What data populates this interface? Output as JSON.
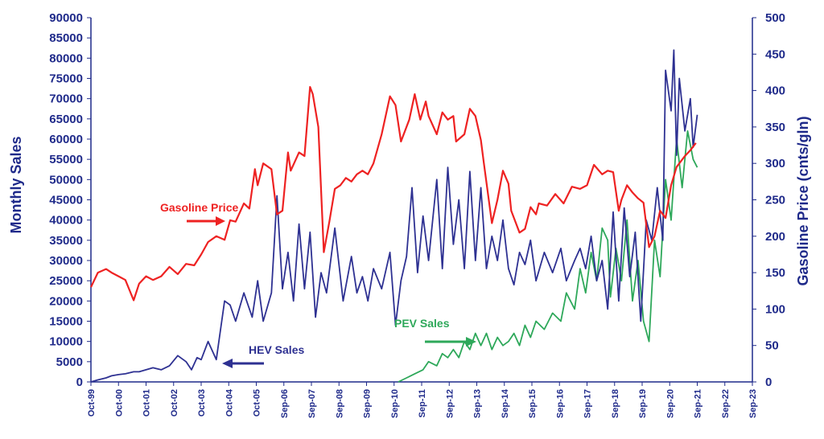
{
  "chart_data": {
    "type": "line",
    "title": "",
    "xlabel": "",
    "ylabel_left": "Monthly Sales",
    "ylabel_right": "Gasoline Price (cnts/gln)",
    "ylim_left": [
      0,
      90000
    ],
    "ylim_right": [
      0,
      500
    ],
    "yticks_left": [
      "0",
      "5000",
      "10000",
      "15000",
      "20000",
      "25000",
      "30000",
      "35000",
      "40000",
      "45000",
      "50000",
      "55000",
      "60000",
      "65000",
      "70000",
      "75000",
      "80000",
      "85000",
      "90000"
    ],
    "yticks_right": [
      "0",
      "50",
      "100",
      "150",
      "200",
      "250",
      "300",
      "350",
      "400",
      "450",
      "500"
    ],
    "xticks": [
      "Oct-99",
      "Oct-00",
      "Oct-01",
      "Oct-02",
      "Oct-03",
      "Oct-04",
      "Oct-05",
      "Sep-06",
      "Sep-07",
      "Sep-08",
      "Sep-09",
      "Sep-10",
      "Sep-11",
      "Sep-12",
      "Sep-13",
      "Sep-14",
      "Sep-15",
      "Sep-16",
      "Sep-17",
      "Sep-18",
      "Sep-19",
      "Sep-20",
      "Sep-21",
      "Sep-22",
      "Sep-23"
    ],
    "grid": false,
    "colors": {
      "gasoline": "#ee2222",
      "hev": "#2e3192",
      "pev": "#2ea85a",
      "axis": "#1f2a8a"
    },
    "annotations": [
      {
        "label": "Gasoline Price",
        "series": "gasoline"
      },
      {
        "label": "HEV Sales",
        "series": "hev"
      },
      {
        "label": "PEV Sales",
        "series": "pev"
      }
    ],
    "series": [
      {
        "name": "Gasoline Price",
        "axis": "right",
        "x": [
          1999.75,
          2000.0,
          2000.3,
          2000.5,
          2000.75,
          2001.0,
          2001.3,
          2001.5,
          2001.75,
          2002.0,
          2002.3,
          2002.6,
          2002.9,
          2003.2,
          2003.5,
          2003.75,
          2004.0,
          2004.3,
          2004.6,
          2004.8,
          2005.0,
          2005.3,
          2005.5,
          2005.7,
          2005.8,
          2006.0,
          2006.3,
          2006.5,
          2006.7,
          2006.9,
          2007.0,
          2007.3,
          2007.5,
          2007.7,
          2007.8,
          2008.0,
          2008.2,
          2008.4,
          2008.6,
          2008.8,
          2009.0,
          2009.2,
          2009.4,
          2009.6,
          2009.8,
          2010.0,
          2010.3,
          2010.6,
          2010.8,
          2011.0,
          2011.3,
          2011.5,
          2011.7,
          2011.9,
          2012.0,
          2012.3,
          2012.5,
          2012.7,
          2012.9,
          2013.0,
          2013.3,
          2013.5,
          2013.7,
          2013.9,
          2014.0,
          2014.3,
          2014.5,
          2014.7,
          2014.9,
          2015.0,
          2015.3,
          2015.5,
          2015.7,
          2015.9,
          2016.0,
          2016.3,
          2016.6,
          2016.9,
          2017.2,
          2017.5,
          2017.75,
          2018.0,
          2018.3,
          2018.5,
          2018.7,
          2018.9,
          2019.0,
          2019.2,
          2019.4,
          2019.6,
          2019.8,
          2020.0,
          2020.2,
          2020.4,
          2020.6,
          2020.8,
          2021.0,
          2021.3,
          2021.5,
          2021.7
        ],
        "values": [
          130,
          150,
          155,
          150,
          145,
          140,
          112,
          135,
          145,
          140,
          145,
          158,
          148,
          162,
          160,
          175,
          192,
          200,
          195,
          222,
          220,
          245,
          238,
          292,
          270,
          300,
          292,
          230,
          235,
          315,
          290,
          315,
          310,
          405,
          395,
          350,
          178,
          220,
          265,
          270,
          280,
          275,
          285,
          290,
          285,
          300,
          340,
          392,
          380,
          330,
          360,
          395,
          360,
          385,
          365,
          340,
          370,
          360,
          365,
          330,
          340,
          375,
          365,
          332,
          302,
          218,
          250,
          290,
          272,
          235,
          205,
          210,
          240,
          230,
          245,
          242,
          258,
          245,
          268,
          265,
          270,
          298,
          285,
          290,
          288,
          235,
          250,
          270,
          260,
          252,
          246,
          185,
          200,
          235,
          225,
          270,
          295,
          310,
          318,
          328
        ]
      },
      {
        "name": "HEV Sales",
        "axis": "left",
        "x": [
          1999.75,
          2000.0,
          2000.3,
          2000.5,
          2000.75,
          2001.0,
          2001.3,
          2001.5,
          2001.75,
          2002.0,
          2002.3,
          2002.6,
          2002.9,
          2003.2,
          2003.4,
          2003.6,
          2003.75,
          2004.0,
          2004.3,
          2004.6,
          2004.8,
          2005.0,
          2005.3,
          2005.6,
          2005.8,
          2006.0,
          2006.3,
          2006.5,
          2006.7,
          2006.9,
          2007.1,
          2007.3,
          2007.5,
          2007.7,
          2007.9,
          2008.1,
          2008.3,
          2008.6,
          2008.9,
          2009.2,
          2009.4,
          2009.6,
          2009.8,
          2010.0,
          2010.3,
          2010.6,
          2010.8,
          2011.0,
          2011.2,
          2011.4,
          2011.6,
          2011.8,
          2012.0,
          2012.3,
          2012.5,
          2012.7,
          2012.9,
          2013.1,
          2013.3,
          2013.5,
          2013.7,
          2013.9,
          2014.1,
          2014.3,
          2014.5,
          2014.7,
          2014.9,
          2015.1,
          2015.3,
          2015.5,
          2015.7,
          2015.9,
          2016.2,
          2016.5,
          2016.8,
          2017.0,
          2017.3,
          2017.5,
          2017.7,
          2017.9,
          2018.1,
          2018.3,
          2018.5,
          2018.7,
          2018.9,
          2019.1,
          2019.3,
          2019.5,
          2019.7,
          2019.9,
          2020.1,
          2020.3,
          2020.5,
          2020.6,
          2020.8,
          2020.9,
          2021.0,
          2021.1,
          2021.3,
          2021.5,
          2021.6,
          2021.75
        ],
        "values": [
          0,
          500,
          1000,
          1500,
          1800,
          2000,
          2500,
          2500,
          3000,
          3500,
          3000,
          4000,
          6500,
          5000,
          3000,
          6000,
          5500,
          10000,
          5500,
          20000,
          19000,
          15000,
          22000,
          16000,
          25000,
          15000,
          22000,
          46000,
          23000,
          32000,
          20000,
          39000,
          23000,
          37000,
          16000,
          27000,
          22000,
          38000,
          20000,
          31000,
          22000,
          26000,
          20000,
          28000,
          23000,
          32000,
          14000,
          25000,
          31000,
          48000,
          27000,
          41000,
          30000,
          50000,
          28000,
          53000,
          34000,
          45000,
          28000,
          52000,
          30000,
          48000,
          28000,
          36000,
          30000,
          40000,
          28000,
          24000,
          32000,
          29000,
          35000,
          25000,
          32000,
          27000,
          33000,
          25000,
          30000,
          33000,
          28000,
          36000,
          25000,
          30000,
          18000,
          42000,
          20000,
          43000,
          26000,
          37000,
          15000,
          40000,
          35000,
          48000,
          35000,
          77000,
          67000,
          82000,
          56000,
          75000,
          62000,
          70000,
          58000,
          66000
        ]
      },
      {
        "name": "PEV Sales",
        "axis": "left",
        "x": [
          2010.9,
          2011.2,
          2011.5,
          2011.8,
          2012.0,
          2012.3,
          2012.5,
          2012.7,
          2012.9,
          2013.1,
          2013.3,
          2013.5,
          2013.7,
          2013.9,
          2014.1,
          2014.3,
          2014.5,
          2014.7,
          2014.9,
          2015.1,
          2015.3,
          2015.5,
          2015.7,
          2015.9,
          2016.2,
          2016.5,
          2016.8,
          2017.0,
          2017.3,
          2017.5,
          2017.7,
          2017.9,
          2018.1,
          2018.3,
          2018.5,
          2018.6,
          2018.8,
          2019.0,
          2019.2,
          2019.4,
          2019.6,
          2019.8,
          2020.0,
          2020.2,
          2020.4,
          2020.6,
          2020.8,
          2021.0,
          2021.2,
          2021.4,
          2021.6,
          2021.75
        ],
        "values": [
          0,
          1000,
          2000,
          3000,
          5000,
          4000,
          7000,
          6000,
          8000,
          6000,
          10000,
          8000,
          12000,
          9000,
          12000,
          8000,
          11000,
          9000,
          10000,
          12000,
          9000,
          14000,
          11000,
          15000,
          13000,
          17000,
          15000,
          22000,
          18000,
          28000,
          22000,
          32000,
          25000,
          38000,
          35000,
          21000,
          33000,
          25000,
          40000,
          20000,
          30000,
          15000,
          10000,
          35000,
          26000,
          50000,
          40000,
          60000,
          48000,
          62000,
          55000,
          53000
        ]
      }
    ]
  }
}
